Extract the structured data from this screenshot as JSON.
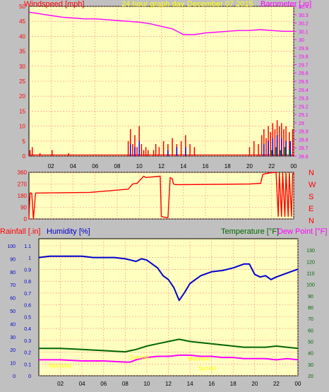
{
  "header": {
    "windspeed_label": "Windspeed [mph]",
    "graph_title": "24 hour graph day",
    "date": "December 07 2015",
    "barometer_label": "Barometer [.in]"
  },
  "lower_header": {
    "rainfall_label": "Rainfall [.in]",
    "humidity_label": "Humidity [%]",
    "temperature_label": "Temperature [°F]",
    "dewpoint_label": "Dew Point [°F]"
  },
  "compass": [
    "N",
    "W",
    "S",
    "E",
    "N"
  ],
  "annotations": [
    "Moonrise",
    "Sunrise",
    "Sunset",
    "Moonset"
  ],
  "colors": {
    "plot_bg": "#ffffc0",
    "grid": "#ff8888",
    "windspeed": "#ff0000",
    "wind_gust_alt": "#0000ff",
    "wind_low": "#008000",
    "barometer": "#ff00ff",
    "humidity": "#0000cc",
    "temperature": "#006600",
    "dewpoint": "#ff00ff",
    "title_text": "#ffff00"
  },
  "chart_data": [
    {
      "type": "line",
      "name": "windspeed-barometer",
      "x_tick_labels": [
        "02",
        "04",
        "06",
        "08",
        "10",
        "12",
        "14",
        "16",
        "18",
        "20",
        "22",
        "00"
      ],
      "xlim": [
        0,
        24
      ],
      "ylabel_left": "Windspeed [mph]",
      "ylim_left": [
        0,
        50
      ],
      "left_ticks": [
        0,
        5,
        10,
        15,
        20,
        25,
        30,
        35,
        40,
        45,
        50
      ],
      "ylabel_right": "Barometer [.in]",
      "ylim_right": [
        28.6,
        30.4
      ],
      "right_ticks": [
        "28.6",
        "28.7",
        "28.8",
        "28.9",
        "29",
        "29.1",
        "29.2",
        "29.3",
        "29.4",
        "29.5",
        "29.6",
        "29.7",
        "29.8",
        "29.9",
        "30",
        "30.1",
        "30.2",
        "30.3",
        "30.4"
      ],
      "series": [
        {
          "name": "Barometer",
          "axis": "right",
          "x": [
            0,
            1,
            2,
            3,
            4,
            5,
            6,
            7,
            8,
            9,
            10,
            11,
            12,
            13,
            14,
            15,
            16,
            17,
            18,
            19,
            20,
            21,
            22,
            23,
            24
          ],
          "values": [
            30.33,
            30.31,
            30.29,
            30.27,
            30.26,
            30.25,
            30.25,
            30.24,
            30.23,
            30.22,
            30.21,
            30.19,
            30.16,
            30.13,
            30.06,
            30.06,
            30.08,
            30.09,
            30.1,
            30.11,
            30.11,
            30.12,
            30.11,
            30.1,
            30.1
          ]
        },
        {
          "name": "Windspeed",
          "axis": "left",
          "x": [
            0.1,
            0.3,
            1.0,
            2.1,
            3.6,
            9.0,
            9.2,
            9.4,
            9.6,
            9.8,
            10.0,
            10.2,
            10.4,
            10.6,
            10.8,
            11.3,
            11.5,
            11.8,
            12.2,
            12.6,
            13.0,
            13.4,
            13.8,
            14.2,
            14.6,
            15.0,
            20.0,
            20.4,
            20.8,
            21.1,
            21.3,
            21.5,
            21.7,
            21.9,
            22.1,
            22.3,
            22.5,
            22.7,
            22.9,
            23.1,
            23.3,
            23.6,
            23.9
          ],
          "values": [
            2,
            3,
            1,
            2,
            1,
            5,
            9,
            4,
            7,
            3,
            10,
            4,
            2,
            3,
            2,
            2,
            4,
            3,
            5,
            4,
            6,
            4,
            5,
            7,
            4,
            3,
            3,
            5,
            4,
            7,
            9,
            6,
            10,
            8,
            11,
            9,
            12,
            10,
            11,
            9,
            10,
            8,
            9
          ]
        },
        {
          "name": "Windspeed low",
          "axis": "left",
          "x": [
            9.2,
            9.6,
            10.0,
            12.6,
            13.4,
            14.2,
            21.3,
            21.7,
            22.1,
            22.5,
            22.9,
            23.3,
            23.7
          ],
          "values": [
            4,
            3,
            5,
            2,
            3,
            3,
            4,
            5,
            6,
            7,
            6,
            5,
            5
          ]
        },
        {
          "name": "Windspeed green",
          "axis": "left",
          "x": [
            22.0,
            22.4,
            22.8,
            23.2,
            23.6
          ],
          "values": [
            2,
            3,
            2,
            3,
            2
          ]
        }
      ]
    },
    {
      "type": "line",
      "name": "wind-direction",
      "ylim": [
        0,
        360
      ],
      "y_ticks": [
        0,
        90,
        180,
        270,
        360
      ],
      "compass_labels": [
        "N",
        "W",
        "S",
        "E",
        "N"
      ],
      "series": [
        {
          "name": "Wind direction",
          "x": [
            0,
            0.1,
            0.25,
            0.4,
            0.6,
            5.5,
            9.0,
            9.4,
            9.8,
            10.4,
            10.6,
            11.9,
            12.0,
            12.2,
            12.6,
            12.8,
            13.0,
            13.1,
            13.3,
            14.0,
            20.0,
            21.0,
            21.2,
            21.8,
            22.4,
            22.6,
            22.7,
            22.9,
            23.0,
            23.2,
            23.3,
            23.5,
            23.6,
            23.8,
            23.9,
            24
          ],
          "values": [
            0,
            200,
            200,
            0,
            200,
            205,
            230,
            270,
            275,
            330,
            320,
            330,
            20,
            15,
            10,
            320,
            310,
            270,
            265,
            265,
            270,
            275,
            345,
            355,
            360,
            20,
            355,
            20,
            355,
            20,
            355,
            20,
            355,
            20,
            350,
            355
          ]
        }
      ]
    },
    {
      "type": "line",
      "name": "rain-humidity-temperature",
      "x_tick_labels": [
        "02",
        "04",
        "06",
        "08",
        "10",
        "12",
        "14",
        "16",
        "18",
        "20",
        "22",
        "00"
      ],
      "xlim": [
        0,
        24
      ],
      "left_outer_label": "Rainfall [.in]",
      "left_outer_ticks": [
        "0",
        "0.1",
        "0.2",
        "0.3",
        "0.4",
        "0.5",
        "0.6",
        "0.7",
        "0.8",
        "0.9",
        "1",
        "1.1"
      ],
      "left_inner_label": "Humidity [%]",
      "left_inner_ticks": [
        "0",
        "10",
        "20",
        "30",
        "40",
        "50",
        "60",
        "70",
        "80",
        "90",
        "100"
      ],
      "right_label": "Temperature [°F]",
      "right_secondary_label": "Dew Point [°F]",
      "ylim_right": [
        20,
        140
      ],
      "right_ticks": [
        "20",
        "30",
        "40",
        "50",
        "60",
        "70",
        "80",
        "90",
        "100",
        "110",
        "120",
        "130"
      ],
      "series": [
        {
          "name": "Humidity",
          "axis": "humidity",
          "x": [
            0,
            1,
            2,
            3,
            4,
            5,
            6,
            7,
            8,
            8.5,
            9,
            9.5,
            10,
            10.5,
            11,
            11.5,
            12,
            12.5,
            12.8,
            13,
            13.5,
            14,
            14.5,
            15,
            16,
            17,
            18,
            19,
            19.5,
            20,
            20.5,
            21,
            21.5,
            22,
            23,
            24
          ],
          "values": [
            91,
            92,
            92,
            92,
            92,
            91,
            91,
            91,
            90,
            89,
            88,
            90,
            89,
            86,
            83,
            77,
            74,
            68,
            62,
            58,
            64,
            71,
            74,
            77,
            80,
            81,
            83,
            86,
            86,
            78,
            76,
            77,
            74,
            76,
            79,
            82
          ]
        },
        {
          "name": "Temperature",
          "axis": "right",
          "x": [
            0,
            2,
            4,
            6,
            8,
            8.5,
            9,
            10,
            11,
            12,
            12.5,
            13,
            13.5,
            14,
            15,
            16,
            17,
            18,
            19,
            20,
            21,
            22,
            23,
            24
          ],
          "values": [
            44,
            44,
            43,
            42,
            41,
            42,
            43,
            46,
            48,
            50,
            51,
            52,
            51,
            50,
            49,
            48,
            47,
            46,
            45,
            45,
            45,
            46,
            45,
            44
          ]
        },
        {
          "name": "Dew Point",
          "axis": "right",
          "x": [
            0,
            2,
            4,
            6,
            8,
            8.5,
            9,
            10,
            11,
            12,
            13,
            14,
            15,
            16,
            17,
            18,
            19,
            20,
            21,
            22,
            23,
            24
          ],
          "values": [
            34,
            34,
            33,
            33,
            32,
            32,
            34,
            36,
            37,
            37,
            38,
            38,
            37,
            37,
            36,
            36,
            35,
            35,
            35,
            34,
            35,
            34
          ]
        }
      ],
      "markers": [
        {
          "label": "Moonrise",
          "x": 2.0,
          "y_frac": 0.06
        },
        {
          "label": "Sunrise",
          "x": 9.3,
          "y_frac": 0.12
        },
        {
          "label": "Sunset",
          "x": 15.6,
          "y_frac": 0.04
        },
        {
          "label": "Moonset",
          "x": 14.8,
          "y_frac": 0.11
        }
      ]
    }
  ]
}
